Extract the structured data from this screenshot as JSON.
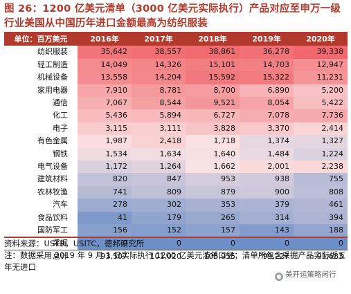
{
  "title": "图 26：1200 亿美元清单（3000 亿美元实际执行）产品对应至申万一级行业美国从中国历年进口金额最高为纺织服装",
  "table": {
    "header": [
      "单位：百万美元",
      "2016年",
      "2017年",
      "2018年",
      "2019年",
      "2020年"
    ],
    "rows": [
      {
        "label": "纺织服装",
        "values": [
          "35,642",
          "38,557",
          "38,861",
          "36,278",
          "39,338"
        ]
      },
      {
        "label": "轻工制造",
        "values": [
          "14,049",
          "14,326",
          "15,101",
          "14,703",
          "12,947"
        ]
      },
      {
        "label": "机械设备",
        "values": [
          "13,558",
          "14,204",
          "15,592",
          "15,322",
          "11,231"
        ]
      },
      {
        "label": "家用电器",
        "values": [
          "7,910",
          "8,781",
          "8,700",
          "6,890",
          "5,200"
        ]
      },
      {
        "label": "通信",
        "values": [
          "7,067",
          "8,544",
          "9,521",
          "8,054",
          "5,422"
        ]
      },
      {
        "label": "化工",
        "values": [
          "5,436",
          "5,894",
          "6,727",
          "7,078",
          "7,736"
        ]
      },
      {
        "label": "电子",
        "values": [
          "3,115",
          "3,111",
          "3,828",
          "3,370",
          "2,414"
        ]
      },
      {
        "label": "有色金属",
        "values": [
          "1,987",
          "2,418",
          "1,718",
          "1,374",
          "1,327"
        ]
      },
      {
        "label": "钢铁",
        "values": [
          "1,534",
          "1,634",
          "1,640",
          "1,484",
          "1,224"
        ]
      },
      {
        "label": "电气设备",
        "values": [
          "1,172",
          "1,264",
          "1,662",
          "2,001",
          "2,238"
        ]
      },
      {
        "label": "建筑材料",
        "values": [
          "820",
          "847",
          "953",
          "938",
          "755"
        ]
      },
      {
        "label": "农林牧渔",
        "values": [
          "741",
          "809",
          "879",
          "900",
          "808"
        ]
      },
      {
        "label": "汽车",
        "values": [
          "278",
          "302",
          "353",
          "379",
          "461"
        ]
      },
      {
        "label": "食品饮料",
        "values": [
          "41",
          "179",
          "265",
          "314",
          "394"
        ]
      },
      {
        "label": "国防军工",
        "values": [
          "156",
          "152",
          "157",
          "143",
          "188"
        ]
      },
      {
        "label": "采掘",
        "values": [
          "0",
          "0",
          "0",
          "0",
          "0"
        ]
      }
    ],
    "total": {
      "label": "总计",
      "values": [
        "93,507",
        "101,020",
        "105,955",
        "99,227",
        "91,683"
      ]
    }
  },
  "source": "资料来源：USTR，USITC，德邦研究所",
  "note": "注：数据采用 2019 年 9 月 1 日实际执行 1200 亿美元清单口径；清单所包含采掘产品实际近五年无进口",
  "watermark": "美开运策略闲行",
  "colors": {
    "accent": "#b13a2c",
    "high": "#f0686d",
    "mid": "#fbe3e4",
    "low": "#6d8fc6"
  }
}
